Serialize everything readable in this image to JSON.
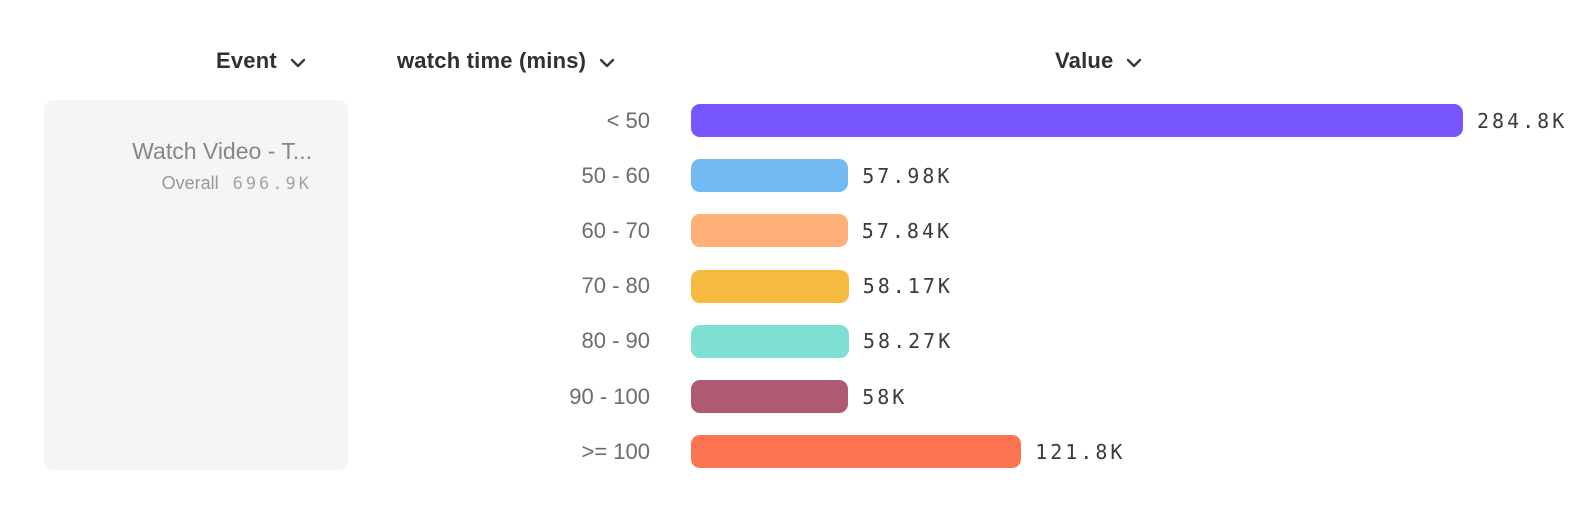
{
  "header": {
    "columns": [
      {
        "label": "Event",
        "icon": "chevron-down"
      },
      {
        "label": "watch time (mins)",
        "icon": "chevron-down"
      },
      {
        "label": "Value",
        "icon": "chevron-down"
      }
    ]
  },
  "event_card": {
    "name": "Watch Video - T...",
    "overall_label": "Overall",
    "overall_value": "696.9K"
  },
  "chart_data": {
    "type": "bar",
    "orientation": "horizontal",
    "title": "",
    "xlabel": "Value",
    "ylabel": "watch time (mins)",
    "categories": [
      "< 50",
      "50 - 60",
      "60 - 70",
      "70 - 80",
      "80 - 90",
      "90 - 100",
      ">= 100"
    ],
    "values": [
      284800,
      57980,
      57840,
      58170,
      58270,
      58000,
      121800
    ],
    "value_labels": [
      "284.8K",
      "57.98K",
      "57.84K",
      "58.17K",
      "58.27K",
      "58K",
      "121.8K"
    ],
    "bar_colors": [
      "#7856ff",
      "#73b9f2",
      "#feb078",
      "#f7ba40",
      "#7de0d3",
      "#b05a72",
      "#fe7452"
    ],
    "xlim": [
      0,
      284800
    ],
    "grid": false,
    "legend": false
  }
}
